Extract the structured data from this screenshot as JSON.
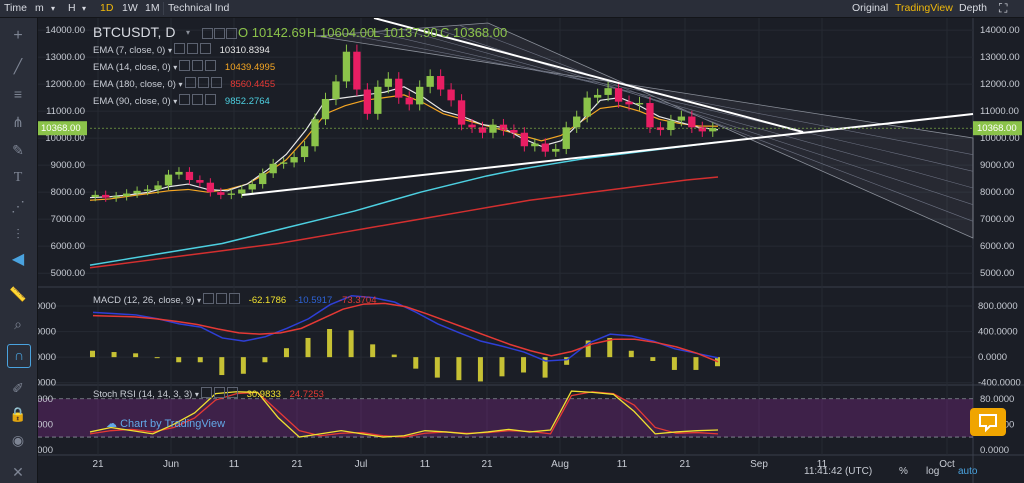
{
  "toolbar": {
    "time_label": "Time",
    "minutes_label": "m",
    "hours_label": "H",
    "interval_1d": "1D",
    "interval_1w": "1W",
    "interval_1m": "1M",
    "indicators_label": "Technical Ind",
    "view_original": "Original",
    "view_tradingview": "TradingView",
    "view_depth": "Depth"
  },
  "symbol": {
    "name": "BTCUSDT, D",
    "open": "O 10142.69",
    "high": "H 10604.00",
    "low": "L 10137.90",
    "close": "C 10368.00",
    "last_price": "10368.00"
  },
  "indicators": [
    {
      "label": "EMA (7, close, 0)",
      "value": "10310.8394",
      "color": "#e8e8e8"
    },
    {
      "label": "EMA (14, close, 0)",
      "value": "10439.4995",
      "color": "#f5a623"
    },
    {
      "label": "EMA (180, close, 0)",
      "value": "8560.4455",
      "color": "#e53935"
    },
    {
      "label": "EMA (90, close, 0)",
      "value": "9852.2764",
      "color": "#4dd0e1"
    }
  ],
  "macd": {
    "label": "MACD (12, 26, close, 9)",
    "value1": "-62.1786",
    "value2": "-10.5917",
    "value3": "-73.3704"
  },
  "stoch": {
    "label": "Stoch RSI (14, 14, 3, 3)",
    "k": "30.9833",
    "d": "24.7253"
  },
  "watermark": "Chart by TradingView",
  "status": {
    "time": "11:41:42 (UTC)",
    "pct": "%",
    "log": "log",
    "auto": "auto"
  },
  "chart_data": {
    "type": "candlestick",
    "x_tick_labels": [
      "21",
      "Jun",
      "11",
      "21",
      "Jul",
      "11",
      "21",
      "Aug",
      "11",
      "21",
      "Sep",
      "11",
      "Oct"
    ],
    "price_axis": {
      "ticks": [
        5000,
        6000,
        7000,
        8000,
        9000,
        10000,
        11000,
        12000,
        13000,
        14000
      ],
      "ylim": [
        4600,
        14300
      ]
    },
    "macd_axis": {
      "ticks": [
        "800.0000",
        "400.0000",
        "0.0000",
        "-400.0000"
      ],
      "ylim": [
        -420,
        1050
      ]
    },
    "stoch_axis": {
      "ticks": [
        "80.0000",
        "40.0000",
        "0.0000"
      ],
      "ylim": [
        -5,
        100
      ]
    },
    "price_close_path": [
      7900,
      7800,
      7850,
      7950,
      8050,
      8100,
      8250,
      8650,
      8750,
      8450,
      8350,
      8000,
      7900,
      7950,
      8100,
      8300,
      8700,
      9050,
      9100,
      9300,
      9700,
      10700,
      11450,
      12100,
      13200,
      11800,
      10900,
      11900,
      12200,
      11500,
      11250,
      11900,
      12300,
      11800,
      11400,
      10500,
      10400,
      10200,
      10500,
      10300,
      10200,
      9700,
      9800,
      9500,
      9600,
      10400,
      10800,
      11500,
      11600,
      11850,
      11350,
      11250,
      11300,
      10400,
      10300,
      10650,
      10800,
      10400,
      10250,
      10368
    ],
    "ema7": [
      7800,
      7830,
      7900,
      8000,
      8200,
      8300,
      8100,
      8050,
      8300,
      8800,
      9400,
      10300,
      11400,
      11500,
      11600,
      11700,
      11900,
      11500,
      11000,
      10800,
      10500,
      10400,
      10000,
      9700,
      9900,
      10600,
      11400,
      11500,
      11200,
      10800,
      10600,
      10400,
      10311
    ],
    "ema14": [
      7700,
      7750,
      7850,
      7950,
      8050,
      8100,
      8000,
      8100,
      8300,
      8700,
      9200,
      10000,
      10900,
      11200,
      11400,
      11500,
      11600,
      11300,
      10900,
      10700,
      10500,
      10300,
      10100,
      9900,
      10100,
      10600,
      11100,
      11200,
      11000,
      10700,
      10550,
      10450,
      10439
    ],
    "ema90": [
      5300,
      5500,
      5700,
      5900,
      6100,
      6400,
      6700,
      7000,
      7300,
      7650,
      8000,
      8300,
      8600,
      8850,
      9050,
      9250,
      9400,
      9550,
      9700,
      9852
    ],
    "ema180": [
      5200,
      5350,
      5500,
      5650,
      5800,
      5950,
      6100,
      6300,
      6500,
      6700,
      6900,
      7100,
      7300,
      7500,
      7700,
      7850,
      8000,
      8150,
      8300,
      8450,
      8560
    ],
    "macd_line": [
      700,
      680,
      660,
      600,
      520,
      470,
      300,
      250,
      320,
      450,
      600,
      820,
      960,
      930,
      860,
      700,
      520,
      380,
      250,
      170,
      80,
      -60,
      -40,
      220,
      360,
      330,
      250,
      130,
      60,
      -11
    ],
    "signal_line": [
      650,
      640,
      630,
      600,
      560,
      510,
      440,
      380,
      360,
      380,
      450,
      600,
      750,
      830,
      840,
      790,
      680,
      560,
      440,
      320,
      200,
      100,
      20,
      90,
      210,
      280,
      280,
      230,
      160,
      60,
      -73
    ],
    "stoch_k": [
      28,
      35,
      30,
      25,
      40,
      58,
      88,
      91,
      90,
      50,
      20,
      25,
      30,
      25,
      20,
      22,
      30,
      28,
      25,
      28,
      32,
      28,
      31,
      92,
      90,
      87,
      60,
      25,
      28,
      30,
      31
    ],
    "stoch_d": [
      25,
      30,
      32,
      28,
      35,
      50,
      78,
      88,
      90,
      60,
      30,
      22,
      26,
      27,
      22,
      20,
      26,
      28,
      26,
      27,
      30,
      29,
      25,
      85,
      91,
      88,
      70,
      35,
      26,
      27,
      25
    ],
    "rsi_band": {
      "upper": 80,
      "lower": 20
    }
  }
}
